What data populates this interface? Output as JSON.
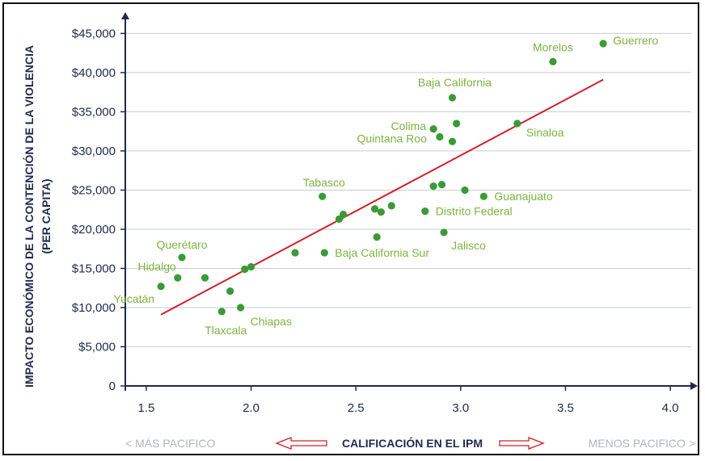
{
  "chart_data": {
    "type": "scatter",
    "ylabel_line1": "IMPACTO ECONÓMICO DE LA CONTENCIÓN DE LA VIOLENCIA",
    "ylabel_line2": "(PER CAPITA)",
    "xlabel": "CALIFICACIÓN EN EL IPM",
    "x_left_note": "< MÁS PACIFICO",
    "x_right_note": "MENOS PACIFICO >",
    "xlim": [
      1.4,
      4.1
    ],
    "ylim": [
      0,
      47000
    ],
    "x_ticks": [
      1.5,
      2.0,
      2.5,
      3.0,
      3.5,
      4.0
    ],
    "x_tick_labels": [
      "1.5",
      "2.0",
      "2.5",
      "3.0",
      "3.5",
      "4.0"
    ],
    "y_ticks": [
      0,
      5000,
      10000,
      15000,
      20000,
      25000,
      30000,
      35000,
      40000,
      45000
    ],
    "y_tick_labels": [
      "0",
      "$5,000",
      "$10,000",
      "$15,000",
      "$20,000",
      "$25,000",
      "$30,000",
      "$35,000",
      "$40,000",
      "$45,000"
    ],
    "grid": "horizontal",
    "point_color": "#3a9a35",
    "label_color": "#7cb342",
    "trend_color": "#d0202a",
    "trendline": {
      "x": [
        1.57,
        3.68
      ],
      "y": [
        9100,
        39100
      ]
    },
    "points": [
      {
        "x": 1.57,
        "y": 12700,
        "label": "Yucatán"
      },
      {
        "x": 1.65,
        "y": 13800,
        "label": "Hidalgo"
      },
      {
        "x": 1.67,
        "y": 16400,
        "label": "Querétaro"
      },
      {
        "x": 1.78,
        "y": 13800,
        "label": ""
      },
      {
        "x": 1.86,
        "y": 9500,
        "label": "Tlaxcala"
      },
      {
        "x": 1.9,
        "y": 12100,
        "label": ""
      },
      {
        "x": 1.95,
        "y": 10000,
        "label": "Chiapas"
      },
      {
        "x": 1.97,
        "y": 14900,
        "label": ""
      },
      {
        "x": 2.0,
        "y": 15200,
        "label": ""
      },
      {
        "x": 2.21,
        "y": 17000,
        "label": ""
      },
      {
        "x": 2.34,
        "y": 24200,
        "label": "Tabasco"
      },
      {
        "x": 2.35,
        "y": 17000,
        "label": "Baja California Sur"
      },
      {
        "x": 2.42,
        "y": 21300,
        "label": ""
      },
      {
        "x": 2.44,
        "y": 21900,
        "label": ""
      },
      {
        "x": 2.59,
        "y": 22600,
        "label": ""
      },
      {
        "x": 2.6,
        "y": 19000,
        "label": ""
      },
      {
        "x": 2.62,
        "y": 22200,
        "label": ""
      },
      {
        "x": 2.67,
        "y": 23000,
        "label": ""
      },
      {
        "x": 2.83,
        "y": 22300,
        "label": "Distrito Federal"
      },
      {
        "x": 2.87,
        "y": 25500,
        "label": ""
      },
      {
        "x": 2.87,
        "y": 32800,
        "label": "Colima"
      },
      {
        "x": 2.9,
        "y": 31800,
        "label": "Quintana Roo"
      },
      {
        "x": 2.91,
        "y": 25700,
        "label": ""
      },
      {
        "x": 2.92,
        "y": 19600,
        "label": "Jalisco"
      },
      {
        "x": 2.96,
        "y": 36800,
        "label": "Baja California"
      },
      {
        "x": 2.96,
        "y": 31200,
        "label": ""
      },
      {
        "x": 2.98,
        "y": 33500,
        "label": ""
      },
      {
        "x": 3.02,
        "y": 25000,
        "label": ""
      },
      {
        "x": 3.11,
        "y": 24200,
        "label": "Guanajuato"
      },
      {
        "x": 3.27,
        "y": 33500,
        "label": "Sinaloa"
      },
      {
        "x": 3.44,
        "y": 41400,
        "label": "Morelos"
      },
      {
        "x": 3.68,
        "y": 43700,
        "label": "Guerrero"
      }
    ]
  }
}
